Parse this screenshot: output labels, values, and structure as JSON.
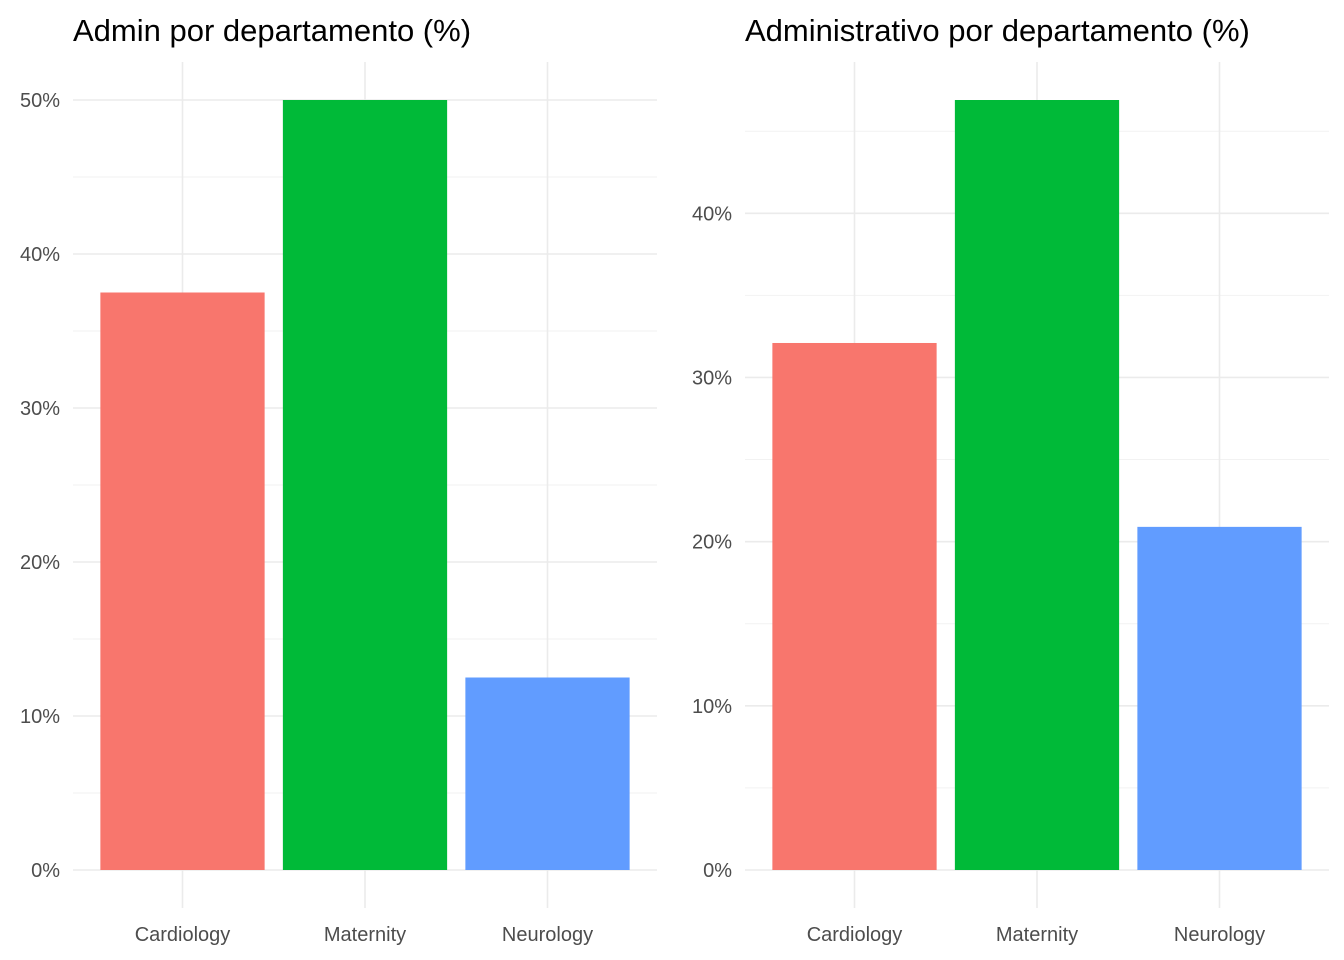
{
  "chart_data": [
    {
      "type": "bar",
      "title": "Admin por departamento (%)",
      "xlabel": "",
      "ylabel": "",
      "categories": [
        "Cardiology",
        "Maternity",
        "Neurology"
      ],
      "values": [
        37.5,
        50.0,
        12.5
      ],
      "colors": [
        "#F8766D",
        "#00BA38",
        "#619CFF"
      ],
      "ylim": [
        0,
        50
      ],
      "yticks": [
        0,
        10,
        20,
        30,
        40,
        50
      ],
      "ytick_labels": [
        "0%",
        "10%",
        "20%",
        "30%",
        "40%",
        "50%"
      ],
      "grid": true,
      "legend": "none"
    },
    {
      "type": "bar",
      "title": "Administrativo por departamento (%)",
      "xlabel": "",
      "ylabel": "",
      "categories": [
        "Cardiology",
        "Maternity",
        "Neurology"
      ],
      "values": [
        32.1,
        46.9,
        20.9
      ],
      "colors": [
        "#F8766D",
        "#00BA38",
        "#619CFF"
      ],
      "ylim": [
        0,
        46.9
      ],
      "yticks": [
        0,
        10,
        20,
        30,
        40
      ],
      "ytick_labels": [
        "0%",
        "10%",
        "20%",
        "30%",
        "40%"
      ],
      "grid": true,
      "legend": "none"
    }
  ]
}
